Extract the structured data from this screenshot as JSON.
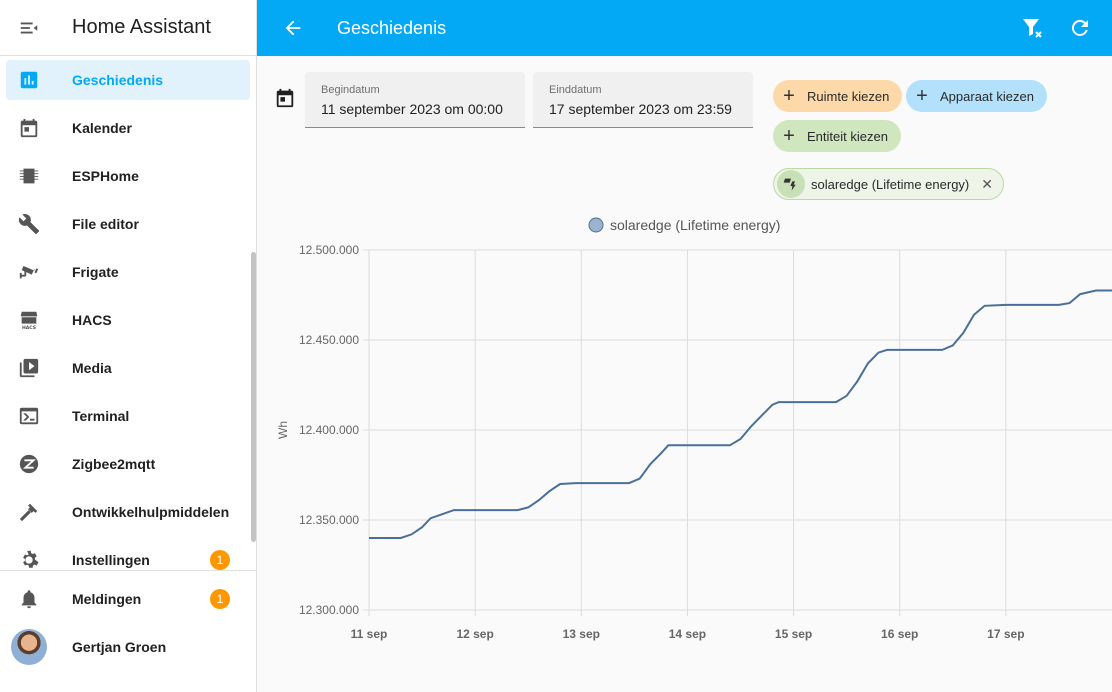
{
  "sidebar": {
    "title": "Home Assistant",
    "items": [
      {
        "label": "Geschiedenis",
        "icon": "chart-box-icon",
        "active": true
      },
      {
        "label": "Kalender",
        "icon": "calendar-icon"
      },
      {
        "label": "ESPHome",
        "icon": "chip-icon"
      },
      {
        "label": "File editor",
        "icon": "wrench-icon"
      },
      {
        "label": "Frigate",
        "icon": "cctv-icon"
      },
      {
        "label": "HACS",
        "icon": "hacs-icon"
      },
      {
        "label": "Media",
        "icon": "play-box-icon"
      },
      {
        "label": "Terminal",
        "icon": "console-icon"
      },
      {
        "label": "Zigbee2mqtt",
        "icon": "zigbee-icon"
      },
      {
        "label": "Ontwikkelhulpmiddelen",
        "icon": "hammer-icon"
      },
      {
        "label": "Instellingen",
        "icon": "cog-icon",
        "badge": "1"
      }
    ],
    "notifications": {
      "label": "Meldingen",
      "badge": "1"
    },
    "user": {
      "name": "Gertjan Groen"
    }
  },
  "topbar": {
    "title": "Geschiedenis"
  },
  "filters": {
    "start": {
      "label": "Begindatum",
      "value": "11 september 2023 om 00:00"
    },
    "end": {
      "label": "Einddatum",
      "value": "17 september 2023 om 23:59"
    },
    "chips": {
      "area": "Ruimte kiezen",
      "device": "Apparaat kiezen",
      "entity": "Entiteit kiezen"
    },
    "selected_entity": "solaredge (Lifetime energy)"
  },
  "chart_data": {
    "type": "line",
    "legend": "solaredge (Lifetime energy)",
    "legend_position": "top-center",
    "ylabel": "Wh",
    "ylim": [
      12300000,
      12500000
    ],
    "yticks": [
      "12.300.000",
      "12.350.000",
      "12.400.000",
      "12.450.000",
      "12.500.000"
    ],
    "xticks": [
      "11 sep",
      "12 sep",
      "13 sep",
      "14 sep",
      "15 sep",
      "16 sep",
      "17 sep"
    ],
    "xlim": [
      0,
      7
    ],
    "grid": true,
    "color": "#4a6f98",
    "series": [
      {
        "name": "solaredge (Lifetime energy)",
        "points": [
          [
            0,
            12340000
          ],
          [
            0.3,
            12340000
          ],
          [
            0.4,
            12342000
          ],
          [
            0.5,
            12346000
          ],
          [
            0.58,
            12351000
          ],
          [
            0.68,
            12353000
          ],
          [
            0.8,
            12355500
          ],
          [
            1.0,
            12355500
          ],
          [
            1.4,
            12355500
          ],
          [
            1.5,
            12357000
          ],
          [
            1.6,
            12361000
          ],
          [
            1.7,
            12366000
          ],
          [
            1.8,
            12370000
          ],
          [
            1.95,
            12370500
          ],
          [
            2.45,
            12370500
          ],
          [
            2.55,
            12373000
          ],
          [
            2.65,
            12381000
          ],
          [
            2.75,
            12387000
          ],
          [
            2.82,
            12391500
          ],
          [
            3.0,
            12391500
          ],
          [
            3.4,
            12391500
          ],
          [
            3.5,
            12395000
          ],
          [
            3.6,
            12402000
          ],
          [
            3.7,
            12408000
          ],
          [
            3.8,
            12414000
          ],
          [
            3.86,
            12415500
          ],
          [
            4.0,
            12415500
          ],
          [
            4.4,
            12415500
          ],
          [
            4.5,
            12419000
          ],
          [
            4.6,
            12427000
          ],
          [
            4.7,
            12437000
          ],
          [
            4.8,
            12443000
          ],
          [
            4.88,
            12444500
          ],
          [
            5.0,
            12444500
          ],
          [
            5.4,
            12444500
          ],
          [
            5.5,
            12447000
          ],
          [
            5.6,
            12454000
          ],
          [
            5.7,
            12464000
          ],
          [
            5.8,
            12469000
          ],
          [
            6.0,
            12469500
          ],
          [
            6.5,
            12469500
          ],
          [
            6.6,
            12470500
          ],
          [
            6.7,
            12475500
          ],
          [
            6.85,
            12477500
          ],
          [
            7.0,
            12477500
          ]
        ]
      }
    ]
  }
}
